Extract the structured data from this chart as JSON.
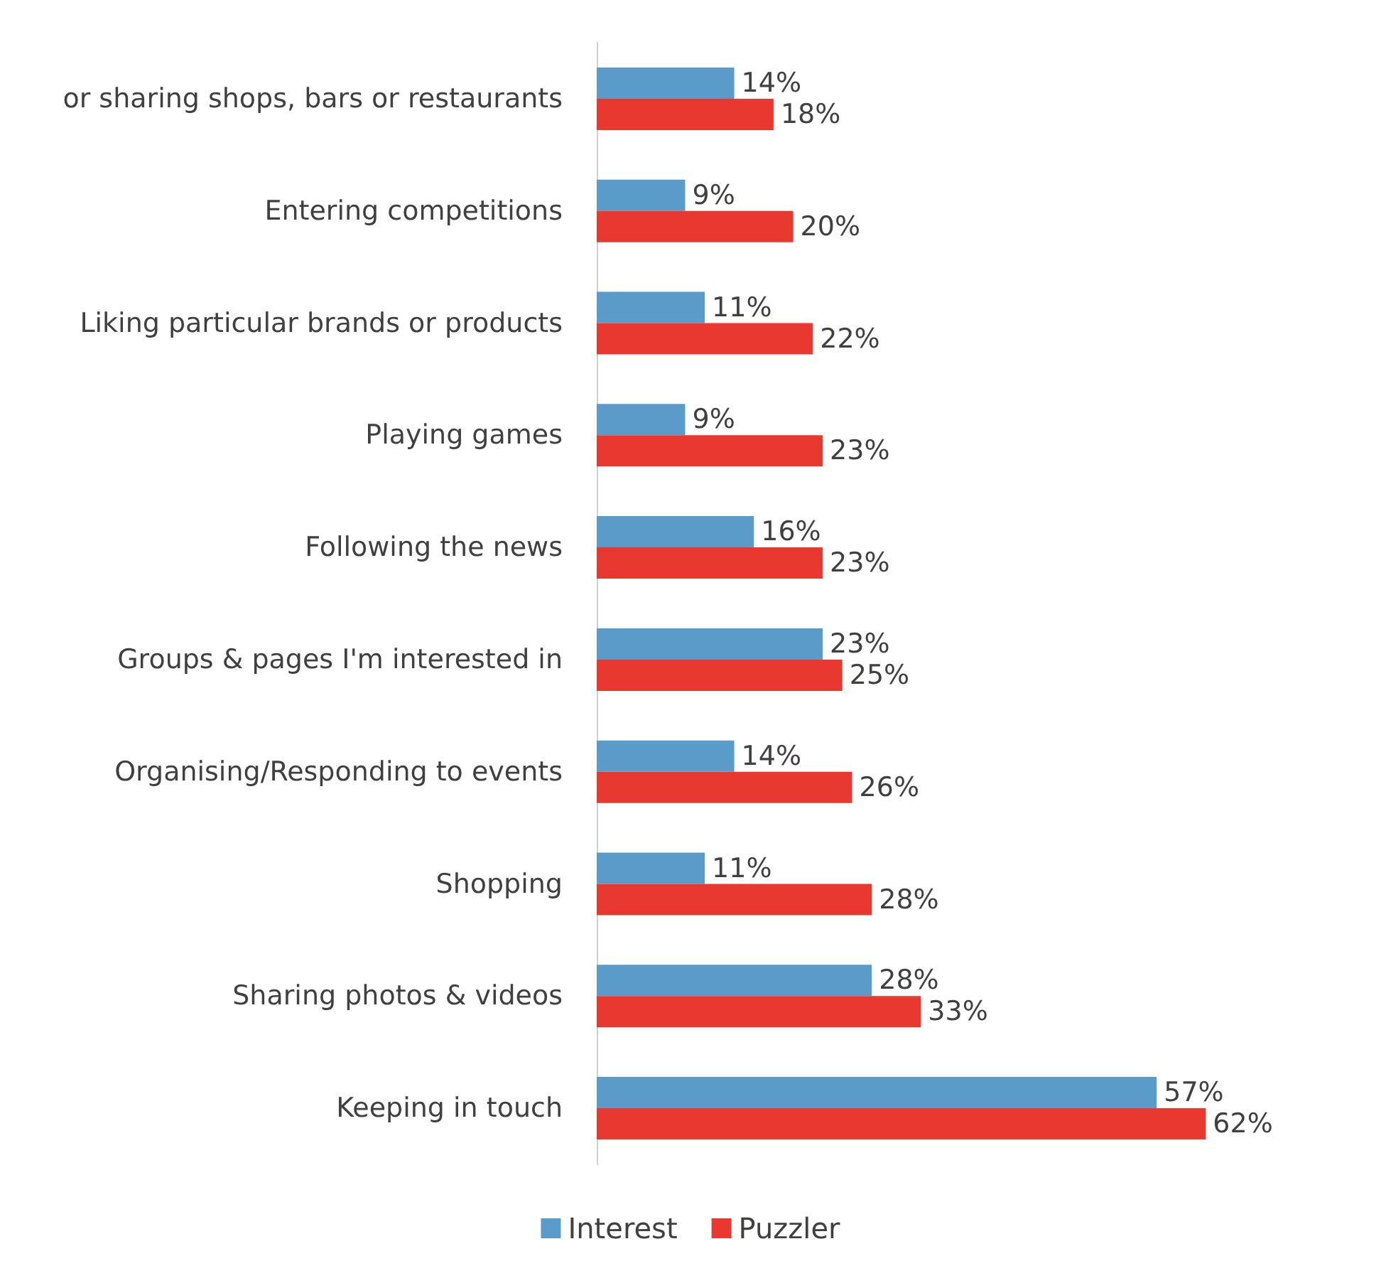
{
  "chart_data": {
    "type": "bar",
    "orientation": "horizontal",
    "categories": [
      "or sharing shops, bars or restaurants",
      "Entering competitions",
      "Liking particular brands or products",
      "Playing games",
      "Following the news",
      "Groups & pages I'm interested in",
      "Organising/Responding to events",
      "Shopping",
      "Sharing photos & videos",
      "Keeping in touch"
    ],
    "series": [
      {
        "name": "Interest",
        "color": "#5b9bc9",
        "values": [
          14,
          9,
          11,
          9,
          16,
          23,
          14,
          11,
          28,
          57
        ],
        "value_labels": [
          "14%",
          "9%",
          "11%",
          "9%",
          "16%",
          "23%",
          "14%",
          "11%",
          "28%",
          "57%"
        ]
      },
      {
        "name": "Puzzler",
        "color": "#e8382f",
        "values": [
          18,
          20,
          22,
          23,
          23,
          25,
          26,
          28,
          33,
          62
        ],
        "value_labels": [
          "18%",
          "20%",
          "22%",
          "23%",
          "23%",
          "25%",
          "26%",
          "28%",
          "33%",
          "62%"
        ]
      }
    ],
    "legend": "bottom"
  }
}
